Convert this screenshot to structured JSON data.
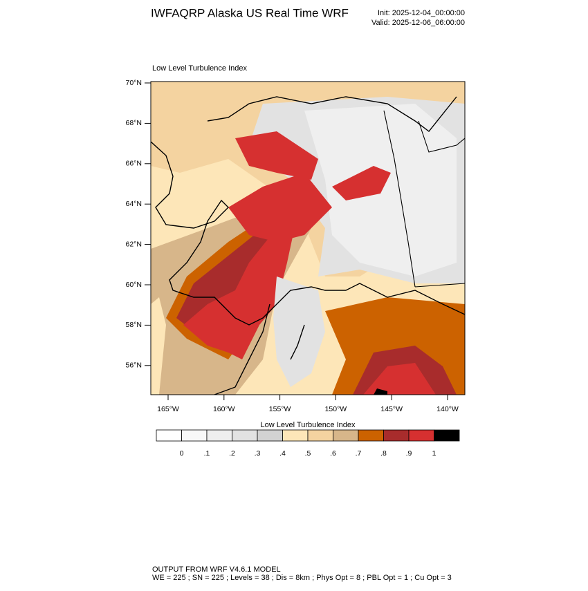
{
  "header": {
    "title": "IWFAQRP Alaska US Real Time WRF",
    "init": "Init: 2025-12-04_00:00:00",
    "valid": "Valid: 2025-12-06_06:00:00"
  },
  "map": {
    "label": "Low Level Turbulence Index",
    "lat_ticks": [
      {
        "value": 70,
        "label": "70°N"
      },
      {
        "value": 68,
        "label": "68°N"
      },
      {
        "value": 66,
        "label": "66°N"
      },
      {
        "value": 64,
        "label": "64°N"
      },
      {
        "value": 62,
        "label": "62°N"
      },
      {
        "value": 60,
        "label": "60°N"
      },
      {
        "value": 58,
        "label": "58°N"
      },
      {
        "value": 56,
        "label": "56°N"
      }
    ],
    "lon_ticks": [
      {
        "value": -165,
        "label": "165°W"
      },
      {
        "value": -160,
        "label": "160°W"
      },
      {
        "value": -155,
        "label": "155°W"
      },
      {
        "value": -150,
        "label": "150°W"
      },
      {
        "value": -145,
        "label": "145°W"
      },
      {
        "value": -140,
        "label": "140°W"
      }
    ]
  },
  "colorbar": {
    "title": "Low Level Turbulence Index",
    "colors": [
      "#ffffff",
      "#f8f8f8",
      "#efefef",
      "#e2e2e2",
      "#d2d2d2",
      "#fde6b8",
      "#f4d3a0",
      "#d7b68a",
      "#cc6200",
      "#a82c2c",
      "#d63030",
      "#000000"
    ],
    "ticks": [
      0,
      {
        "value": 0.1,
        "label": ".1"
      },
      {
        "value": 0.2,
        "label": ".2"
      },
      {
        "value": 0.3,
        "label": ".3"
      },
      {
        "value": 0.4,
        "label": ".4"
      },
      {
        "value": 0.5,
        "label": ".5"
      },
      {
        "value": 0.6,
        "label": ".6"
      },
      {
        "value": 0.7,
        "label": ".7"
      },
      {
        "value": 0.8,
        "label": ".8"
      },
      {
        "value": 0.9,
        "label": ".9"
      },
      1
    ]
  },
  "footer": {
    "line1": "OUTPUT FROM WRF V4.6.1 MODEL",
    "line2": "WE = 225 ; SN = 225 ; Levels = 38 ; Dis = 8km ; Phys Opt = 8 ; PBL Opt = 1 ; Cu Opt = 3"
  }
}
